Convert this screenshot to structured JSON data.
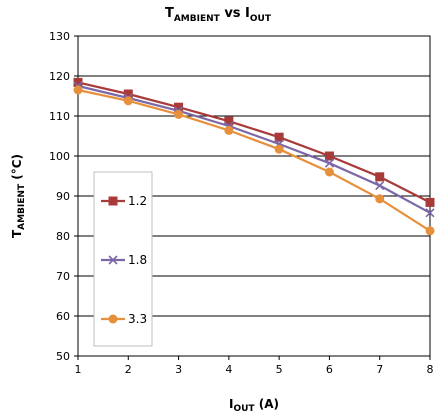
{
  "chart_data": {
    "type": "line",
    "title": {
      "main": "T",
      "main_sub": "AMBIENT",
      "mid": " vs I",
      "mid_sub": "OUT"
    },
    "xlabel": {
      "main": "I",
      "sub": "OUT",
      "rest": " (A)"
    },
    "ylabel": {
      "main": "T",
      "sub": "AMBIENT",
      "rest": " (°C)"
    },
    "x": [
      1,
      2,
      3,
      4,
      5,
      6,
      7,
      8
    ],
    "xlim": [
      1,
      8
    ],
    "ylim": [
      50,
      130
    ],
    "xticks": [
      1,
      2,
      3,
      4,
      5,
      6,
      7,
      8
    ],
    "yticks": [
      50,
      60,
      70,
      80,
      90,
      100,
      110,
      120,
      130
    ],
    "grid": "horizontal",
    "legend_position": "left",
    "series": [
      {
        "name": "1.2",
        "color": "#A83A3A",
        "marker": "square",
        "values": [
          118.4,
          115.5,
          112.2,
          108.7,
          104.7,
          100.0,
          94.8,
          88.4
        ]
      },
      {
        "name": "1.8",
        "color": "#7B68A6",
        "marker": "x",
        "values": [
          117.5,
          114.5,
          111.3,
          107.5,
          103.0,
          98.2,
          92.6,
          85.8
        ]
      },
      {
        "name": "3.3",
        "color": "#E6903C",
        "marker": "circle",
        "values": [
          116.5,
          113.8,
          110.4,
          106.4,
          101.7,
          96.0,
          89.3,
          81.3
        ]
      }
    ]
  }
}
